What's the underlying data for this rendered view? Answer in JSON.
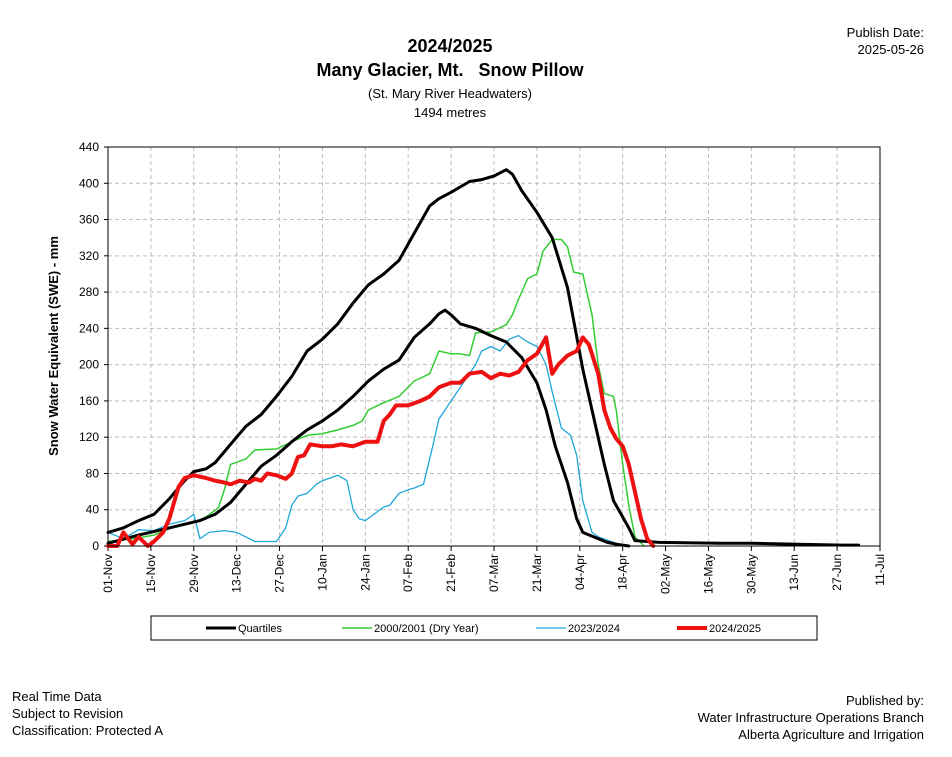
{
  "publish": {
    "label": "Publish Date:",
    "date": "2025-05-26"
  },
  "title": {
    "line1": "2024/2025",
    "line2": "Many Glacier, Mt.   Snow Pillow",
    "line3": "(St. Mary River Headwaters)",
    "line4": "1494 metres"
  },
  "footer_left": {
    "l1": "Real Time Data",
    "l2": "Subject to Revision",
    "l3": " Classification: Protected A"
  },
  "footer_right": {
    "l1": "Published by:",
    "l2": "Water Infrastructure Operations Branch",
    "l3": "Alberta Agriculture and Irrigation"
  },
  "chart_data": {
    "type": "line",
    "ylabel": "Snow Water Equivalent (SWE)  -  mm",
    "ylim": [
      0,
      440
    ],
    "yticks": [
      0,
      40,
      80,
      120,
      160,
      200,
      240,
      280,
      320,
      360,
      400,
      440
    ],
    "xticks": [
      "01-Nov",
      "15-Nov",
      "29-Nov",
      "13-Dec",
      "27-Dec",
      "10-Jan",
      "24-Jan",
      "07-Feb",
      "21-Feb",
      "07-Mar",
      "21-Mar",
      "04-Apr",
      "18-Apr",
      "02-May",
      "16-May",
      "30-May",
      "13-Jun",
      "27-Jun",
      "11-Jul"
    ],
    "grid": true,
    "legend_position": "bottom",
    "colors": {
      "quartiles": "#000000",
      "dry": "#33cc33",
      "prev": "#1fa7d9",
      "current": "#ee1111"
    },
    "series": [
      {
        "name": "Quartiles",
        "key": "quartiles",
        "width": 3,
        "values": [
          [
            0,
            15
          ],
          [
            5,
            20
          ],
          [
            10,
            28
          ],
          [
            15,
            35
          ],
          [
            20,
            52
          ],
          [
            25,
            72
          ],
          [
            28,
            82
          ],
          [
            32,
            85
          ],
          [
            35,
            92
          ],
          [
            40,
            112
          ],
          [
            45,
            132
          ],
          [
            50,
            145
          ],
          [
            55,
            165
          ],
          [
            60,
            187
          ],
          [
            65,
            215
          ],
          [
            70,
            228
          ],
          [
            75,
            245
          ],
          [
            80,
            268
          ],
          [
            85,
            288
          ],
          [
            90,
            300
          ],
          [
            95,
            315
          ],
          [
            100,
            345
          ],
          [
            105,
            375
          ],
          [
            108,
            383
          ],
          [
            112,
            390
          ],
          [
            118,
            402
          ],
          [
            122,
            404
          ],
          [
            126,
            408
          ],
          [
            130,
            415
          ],
          [
            132,
            410
          ],
          [
            135,
            392
          ],
          [
            140,
            368
          ],
          [
            145,
            340
          ],
          [
            150,
            285
          ],
          [
            155,
            195
          ],
          [
            158,
            150
          ],
          [
            162,
            90
          ],
          [
            165,
            50
          ],
          [
            170,
            20
          ],
          [
            172,
            6
          ],
          [
            180,
            4
          ],
          [
            200,
            3
          ],
          [
            210,
            3
          ],
          [
            225,
            2
          ],
          [
            240,
            1
          ],
          [
            245,
            1
          ]
        ]
      },
      {
        "name": "",
        "key": "quartiles",
        "width": 3,
        "values": [
          [
            0,
            3
          ],
          [
            10,
            12
          ],
          [
            20,
            20
          ],
          [
            30,
            28
          ],
          [
            35,
            35
          ],
          [
            40,
            48
          ],
          [
            45,
            68
          ],
          [
            50,
            88
          ],
          [
            55,
            100
          ],
          [
            60,
            115
          ],
          [
            65,
            128
          ],
          [
            70,
            138
          ],
          [
            75,
            150
          ],
          [
            80,
            165
          ],
          [
            85,
            182
          ],
          [
            90,
            195
          ],
          [
            95,
            205
          ],
          [
            100,
            230
          ],
          [
            105,
            245
          ],
          [
            108,
            256
          ],
          [
            110,
            260
          ],
          [
            112,
            255
          ],
          [
            115,
            245
          ],
          [
            120,
            240
          ],
          [
            125,
            232
          ],
          [
            130,
            225
          ],
          [
            135,
            208
          ],
          [
            140,
            180
          ],
          [
            143,
            150
          ],
          [
            146,
            110
          ],
          [
            150,
            70
          ],
          [
            153,
            30
          ],
          [
            155,
            15
          ],
          [
            160,
            8
          ],
          [
            163,
            4
          ],
          [
            166,
            2
          ],
          [
            170,
            0
          ]
        ]
      },
      {
        "name": "2000/2001  (Dry Year)",
        "key": "dry",
        "width": 1.5,
        "values": [
          [
            0,
            5
          ],
          [
            8,
            8
          ],
          [
            15,
            12
          ],
          [
            22,
            22
          ],
          [
            28,
            26
          ],
          [
            32,
            32
          ],
          [
            36,
            42
          ],
          [
            38,
            62
          ],
          [
            40,
            90
          ],
          [
            45,
            96
          ],
          [
            48,
            106
          ],
          [
            55,
            107
          ],
          [
            60,
            115
          ],
          [
            65,
            122
          ],
          [
            70,
            124
          ],
          [
            75,
            128
          ],
          [
            80,
            133
          ],
          [
            83,
            138
          ],
          [
            85,
            150
          ],
          [
            90,
            158
          ],
          [
            95,
            165
          ],
          [
            100,
            182
          ],
          [
            105,
            190
          ],
          [
            108,
            215
          ],
          [
            112,
            212
          ],
          [
            115,
            212
          ],
          [
            118,
            210
          ],
          [
            120,
            235
          ],
          [
            125,
            236
          ],
          [
            130,
            244
          ],
          [
            132,
            255
          ],
          [
            134,
            272
          ],
          [
            137,
            295
          ],
          [
            140,
            300
          ],
          [
            142,
            325
          ],
          [
            145,
            338
          ],
          [
            148,
            338
          ],
          [
            150,
            330
          ],
          [
            152,
            302
          ],
          [
            155,
            300
          ],
          [
            158,
            255
          ],
          [
            160,
            200
          ],
          [
            162,
            168
          ],
          [
            165,
            165
          ],
          [
            166,
            148
          ],
          [
            168,
            90
          ],
          [
            170,
            45
          ],
          [
            172,
            10
          ],
          [
            175,
            0
          ]
        ]
      },
      {
        "name": "2023/2024",
        "key": "prev",
        "width": 1.3,
        "values": [
          [
            0,
            15
          ],
          [
            5,
            8
          ],
          [
            10,
            18
          ],
          [
            15,
            17
          ],
          [
            20,
            24
          ],
          [
            25,
            28
          ],
          [
            28,
            35
          ],
          [
            30,
            8
          ],
          [
            33,
            15
          ],
          [
            38,
            17
          ],
          [
            42,
            15
          ],
          [
            45,
            10
          ],
          [
            48,
            5
          ],
          [
            52,
            5
          ],
          [
            55,
            5
          ],
          [
            58,
            20
          ],
          [
            60,
            45
          ],
          [
            62,
            55
          ],
          [
            65,
            58
          ],
          [
            68,
            68
          ],
          [
            70,
            72
          ],
          [
            75,
            78
          ],
          [
            78,
            72
          ],
          [
            80,
            40
          ],
          [
            82,
            30
          ],
          [
            84,
            28
          ],
          [
            88,
            38
          ],
          [
            90,
            43
          ],
          [
            92,
            45
          ],
          [
            95,
            58
          ],
          [
            98,
            62
          ],
          [
            100,
            64
          ],
          [
            103,
            68
          ],
          [
            106,
            110
          ],
          [
            108,
            140
          ],
          [
            112,
            160
          ],
          [
            115,
            175
          ],
          [
            118,
            190
          ],
          [
            120,
            200
          ],
          [
            122,
            215
          ],
          [
            125,
            220
          ],
          [
            128,
            215
          ],
          [
            131,
            228
          ],
          [
            134,
            232
          ],
          [
            137,
            225
          ],
          [
            140,
            220
          ],
          [
            143,
            200
          ],
          [
            145,
            170
          ],
          [
            148,
            130
          ],
          [
            151,
            122
          ],
          [
            153,
            100
          ],
          [
            155,
            50
          ],
          [
            158,
            15
          ],
          [
            160,
            10
          ],
          [
            165,
            4
          ],
          [
            168,
            0
          ]
        ]
      },
      {
        "name": "2024/2025",
        "key": "current",
        "width": 4,
        "values": [
          [
            0,
            0
          ],
          [
            3,
            0
          ],
          [
            5,
            15
          ],
          [
            8,
            2
          ],
          [
            10,
            10
          ],
          [
            13,
            0
          ],
          [
            15,
            5
          ],
          [
            18,
            15
          ],
          [
            20,
            30
          ],
          [
            23,
            65
          ],
          [
            25,
            75
          ],
          [
            28,
            78
          ],
          [
            32,
            75
          ],
          [
            35,
            72
          ],
          [
            38,
            70
          ],
          [
            40,
            68
          ],
          [
            43,
            72
          ],
          [
            46,
            70
          ],
          [
            48,
            74
          ],
          [
            50,
            72
          ],
          [
            52,
            80
          ],
          [
            55,
            78
          ],
          [
            58,
            74
          ],
          [
            60,
            80
          ],
          [
            62,
            98
          ],
          [
            64,
            100
          ],
          [
            66,
            112
          ],
          [
            70,
            110
          ],
          [
            73,
            110
          ],
          [
            76,
            112
          ],
          [
            80,
            110
          ],
          [
            84,
            115
          ],
          [
            88,
            115
          ],
          [
            90,
            138
          ],
          [
            92,
            145
          ],
          [
            94,
            155
          ],
          [
            98,
            155
          ],
          [
            102,
            160
          ],
          [
            105,
            165
          ],
          [
            108,
            175
          ],
          [
            112,
            180
          ],
          [
            115,
            180
          ],
          [
            118,
            190
          ],
          [
            122,
            192
          ],
          [
            125,
            185
          ],
          [
            128,
            190
          ],
          [
            131,
            188
          ],
          [
            134,
            192
          ],
          [
            137,
            205
          ],
          [
            140,
            212
          ],
          [
            143,
            230
          ],
          [
            145,
            190
          ],
          [
            147,
            200
          ],
          [
            150,
            210
          ],
          [
            153,
            215
          ],
          [
            155,
            230
          ],
          [
            157,
            222
          ],
          [
            160,
            190
          ],
          [
            162,
            150
          ],
          [
            164,
            130
          ],
          [
            166,
            118
          ],
          [
            168,
            110
          ],
          [
            170,
            90
          ],
          [
            172,
            60
          ],
          [
            174,
            30
          ],
          [
            176,
            8
          ],
          [
            178,
            0
          ]
        ]
      }
    ],
    "legend": [
      {
        "label": "Quartiles",
        "key": "quartiles",
        "width": 3
      },
      {
        "label": "2000/2001  (Dry Year)",
        "key": "dry",
        "width": 1.5
      },
      {
        "label": "2023/2024",
        "key": "prev",
        "width": 1.3
      },
      {
        "label": "2024/2025",
        "key": "current",
        "width": 4
      }
    ]
  }
}
